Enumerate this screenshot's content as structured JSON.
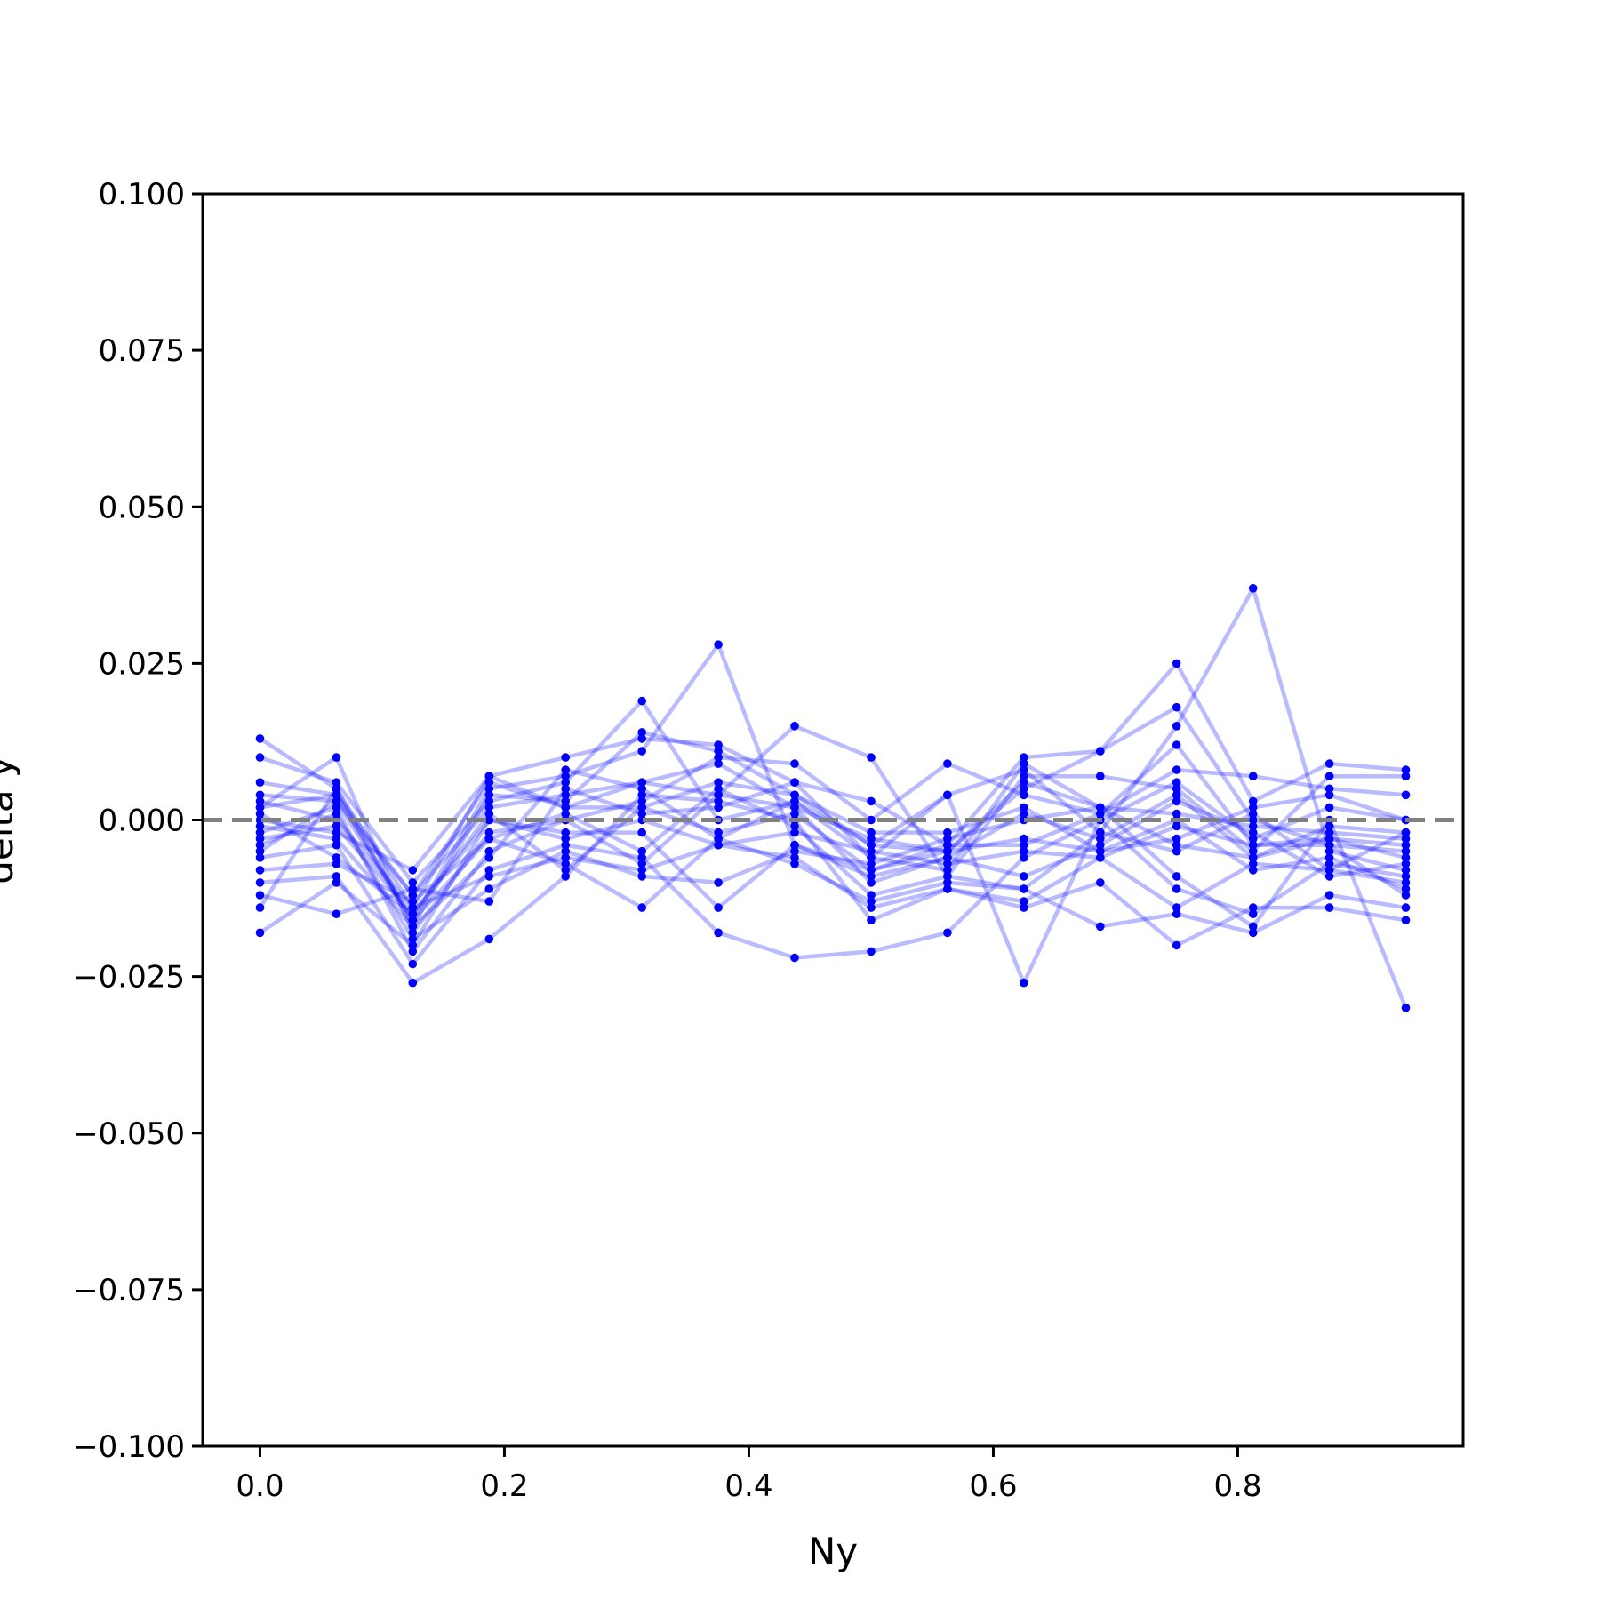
{
  "chart_data": {
    "type": "line",
    "xlabel": "Ny",
    "ylabel": "delta y",
    "xlim": [
      -0.046875,
      0.984375
    ],
    "ylim": [
      -0.1,
      0.1
    ],
    "xticks": [
      0.0,
      0.2,
      0.4,
      0.6,
      0.8
    ],
    "xtick_labels": [
      "0.0",
      "0.2",
      "0.4",
      "0.6",
      "0.8"
    ],
    "yticks": [
      -0.1,
      -0.075,
      -0.05,
      -0.025,
      0.0,
      0.025,
      0.05,
      0.075,
      0.1
    ],
    "ytick_labels": [
      "−0.100",
      "−0.075",
      "−0.050",
      "−0.025",
      "0.000",
      "0.025",
      "0.050",
      "0.075",
      "0.100"
    ],
    "grid": false,
    "legend": "none",
    "reference_line": {
      "y": 0.0,
      "style": "dashed",
      "color": "#808080"
    },
    "series_color": "#0000ff",
    "x": [
      0.0,
      0.0625,
      0.125,
      0.1875,
      0.25,
      0.3125,
      0.375,
      0.4375,
      0.5,
      0.5625,
      0.625,
      0.6875,
      0.75,
      0.8125,
      0.875,
      0.9375
    ],
    "series": [
      {
        "values": [
          0.013,
          0.005,
          -0.014,
          0.007,
          0.01,
          0.013,
          0.012,
          0.006,
          0.003,
          -0.004,
          0.01,
          0.011,
          0.018,
          0.0,
          -0.004,
          -0.012
        ]
      },
      {
        "values": [
          0.01,
          0.006,
          -0.01,
          0.003,
          0.006,
          0.019,
          0.0,
          0.003,
          -0.006,
          0.004,
          0.008,
          -0.002,
          0.015,
          0.037,
          -0.005,
          -0.008
        ]
      },
      {
        "values": [
          0.006,
          0.004,
          -0.016,
          0.005,
          0.007,
          0.011,
          0.028,
          -0.004,
          -0.008,
          -0.005,
          0.005,
          0.011,
          0.025,
          0.003,
          0.009,
          0.008
        ]
      },
      {
        "values": [
          0.004,
          0.003,
          -0.012,
          0.002,
          0.004,
          0.006,
          0.004,
          0.015,
          0.01,
          -0.009,
          0.007,
          0.007,
          0.005,
          -0.005,
          0.007,
          0.007
        ]
      },
      {
        "values": [
          0.002,
          0.01,
          -0.018,
          -0.002,
          0.0,
          0.003,
          0.01,
          0.009,
          0.0,
          0.009,
          0.004,
          0.001,
          0.008,
          0.007,
          0.005,
          0.004
        ]
      },
      {
        "values": [
          0.0,
          -0.002,
          -0.008,
          0.007,
          0.002,
          0.002,
          0.006,
          0.004,
          -0.004,
          0.004,
          -0.026,
          0.0,
          0.006,
          -0.003,
          0.002,
          0.0
        ]
      },
      {
        "values": [
          -0.002,
          0.002,
          -0.021,
          -0.005,
          0.0,
          -0.007,
          0.004,
          0.002,
          -0.01,
          -0.006,
          0.001,
          -0.003,
          0.004,
          -0.006,
          -0.001,
          -0.002
        ]
      },
      {
        "values": [
          -0.003,
          -0.001,
          -0.015,
          0.0,
          -0.003,
          0.0,
          -0.004,
          -0.002,
          -0.005,
          -0.007,
          -0.005,
          -0.006,
          -0.001,
          -0.004,
          -0.004,
          -0.005
        ]
      },
      {
        "values": [
          -0.004,
          0.001,
          -0.019,
          -0.011,
          -0.005,
          -0.009,
          -0.01,
          -0.005,
          -0.007,
          -0.003,
          0.0,
          0.002,
          -0.004,
          -0.006,
          -0.003,
          -0.006
        ]
      },
      {
        "values": [
          -0.006,
          -0.004,
          -0.023,
          -0.008,
          -0.004,
          -0.006,
          -0.018,
          -0.022,
          -0.021,
          -0.018,
          -0.006,
          0.0,
          -0.011,
          -0.015,
          -0.007,
          -0.009
        ]
      },
      {
        "values": [
          -0.008,
          -0.007,
          -0.013,
          -0.003,
          -0.007,
          -0.014,
          -0.003,
          -0.007,
          -0.013,
          -0.01,
          -0.011,
          -0.017,
          -0.015,
          -0.018,
          -0.012,
          -0.014
        ]
      },
      {
        "values": [
          -0.01,
          -0.009,
          -0.026,
          -0.019,
          -0.009,
          0.004,
          0.003,
          0.0,
          -0.016,
          -0.011,
          -0.014,
          -0.01,
          -0.02,
          -0.014,
          -0.014,
          -0.016
        ]
      },
      {
        "values": [
          -0.012,
          -0.015,
          -0.011,
          -0.013,
          0.005,
          0.001,
          0.002,
          0.006,
          -0.006,
          -0.008,
          0.009,
          0.002,
          -0.009,
          -0.017,
          0.0,
          -0.03
        ]
      },
      {
        "values": [
          -0.014,
          0.005,
          -0.017,
          -0.006,
          0.008,
          0.005,
          -0.003,
          0.003,
          -0.004,
          -0.005,
          -0.003,
          -0.005,
          0.0,
          -0.008,
          -0.006,
          -0.011
        ]
      },
      {
        "values": [
          -0.018,
          -0.01,
          -0.02,
          0.0,
          -0.002,
          -0.002,
          -0.014,
          -0.004,
          -0.009,
          -0.006,
          -0.009,
          -0.004,
          0.003,
          -0.002,
          -0.009,
          -0.007
        ]
      },
      {
        "values": [
          0.003,
          0.0,
          -0.014,
          -0.009,
          -0.006,
          -0.008,
          -0.004,
          -0.006,
          -0.014,
          -0.011,
          -0.013,
          -0.006,
          -0.014,
          -0.007,
          -0.008,
          -0.002
        ]
      },
      {
        "values": [
          -0.001,
          -0.003,
          -0.017,
          0.004,
          0.003,
          0.014,
          0.011,
          0.004,
          -0.002,
          -0.002,
          0.002,
          -0.005,
          -0.003,
          0.002,
          0.004,
          0.0
        ]
      },
      {
        "values": [
          0.001,
          -0.006,
          -0.015,
          0.001,
          -0.008,
          0.002,
          -0.002,
          0.001,
          -0.008,
          -0.004,
          -0.004,
          0.001,
          0.012,
          -0.004,
          -0.003,
          -0.004
        ]
      },
      {
        "values": [
          -0.005,
          0.003,
          -0.016,
          -0.003,
          0.001,
          -0.005,
          0.005,
          -0.001,
          -0.012,
          -0.009,
          -0.011,
          -0.002,
          -0.005,
          0.001,
          -0.008,
          -0.01
        ]
      },
      {
        "values": [
          0.002,
          0.004,
          -0.012,
          0.006,
          0.002,
          0.006,
          0.009,
          0.002,
          -0.003,
          -0.005,
          0.006,
          0.002,
          0.001,
          -0.001,
          -0.002,
          -0.003
        ]
      }
    ]
  }
}
